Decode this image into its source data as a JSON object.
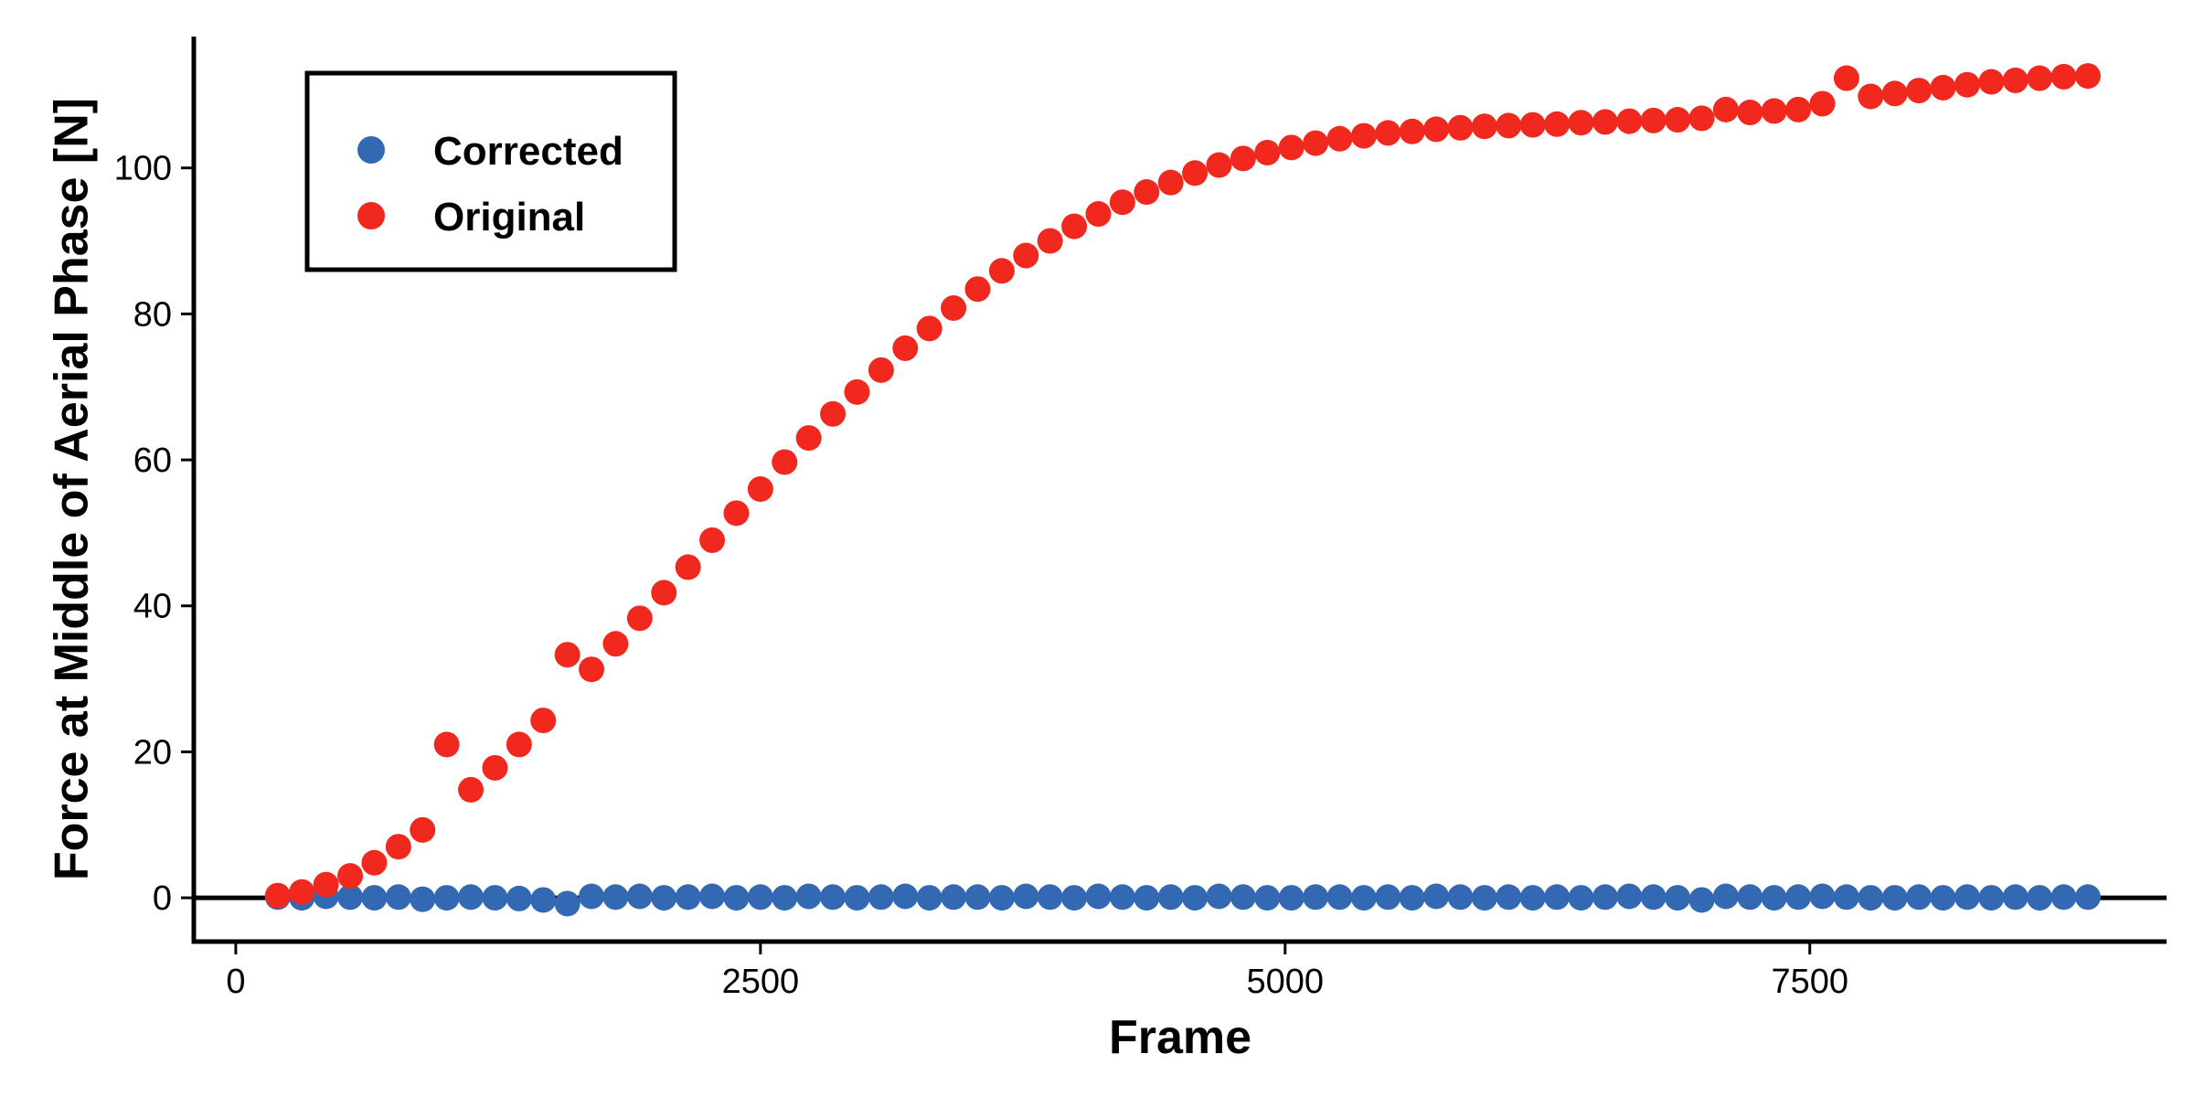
{
  "chart_data": {
    "type": "scatter",
    "title": "",
    "xlabel": "Frame",
    "ylabel": "Force at Middle of Aerial Phase [N]",
    "xlim": [
      -200,
      9200
    ],
    "ylim": [
      -6,
      118
    ],
    "xticks": [
      0,
      2500,
      5000,
      7500
    ],
    "yticks": [
      0,
      20,
      40,
      60,
      80,
      100
    ],
    "grid": false,
    "reference_line_y": 0,
    "legend_position": "top-left",
    "series": [
      {
        "name": "Corrected",
        "color": "#3369b3",
        "x": [
          200,
          315,
          430,
          545,
          660,
          775,
          890,
          1005,
          1120,
          1235,
          1350,
          1465,
          1580,
          1695,
          1810,
          1925,
          2040,
          2155,
          2270,
          2385,
          2500,
          2615,
          2730,
          2845,
          2960,
          3075,
          3190,
          3305,
          3420,
          3535,
          3650,
          3765,
          3880,
          3995,
          4110,
          4225,
          4340,
          4455,
          4570,
          4685,
          4800,
          4915,
          5030,
          5145,
          5260,
          5375,
          5490,
          5605,
          5720,
          5835,
          5950,
          6065,
          6180,
          6295,
          6410,
          6525,
          6640,
          6755,
          6870,
          6985,
          7100,
          7215,
          7330,
          7445,
          7560,
          7675,
          7790,
          7905,
          8020,
          8135,
          8250,
          8365,
          8480,
          8595,
          8710,
          8825
        ],
        "y": [
          0.1,
          0,
          0.2,
          0.1,
          0,
          0.1,
          -0.2,
          0,
          0.1,
          0,
          -0.1,
          -0.3,
          -0.8,
          0.2,
          0.1,
          0.2,
          0,
          0.1,
          0.2,
          0,
          0.1,
          0,
          0.2,
          0.1,
          0,
          0.1,
          0.2,
          0,
          0.1,
          0.1,
          0,
          0.2,
          0.1,
          0,
          0.2,
          0.1,
          0,
          0.1,
          0,
          0.2,
          0.1,
          0,
          0,
          0.1,
          0.1,
          0,
          0.1,
          0,
          0.2,
          0.1,
          0,
          0.1,
          0,
          0.1,
          0,
          0.1,
          0.2,
          0.1,
          0,
          -0.3,
          0.2,
          0.1,
          0,
          0.1,
          0.2,
          0.1,
          0,
          0,
          0.1,
          0,
          0.1,
          0,
          0.1,
          0,
          0.1,
          0.1
        ]
      },
      {
        "name": "Original",
        "color": "#f0281e",
        "x": [
          200,
          315,
          430,
          545,
          660,
          775,
          890,
          1005,
          1120,
          1235,
          1350,
          1465,
          1580,
          1695,
          1810,
          1925,
          2040,
          2155,
          2270,
          2385,
          2500,
          2615,
          2730,
          2845,
          2960,
          3075,
          3190,
          3305,
          3420,
          3535,
          3650,
          3765,
          3880,
          3995,
          4110,
          4225,
          4340,
          4455,
          4570,
          4685,
          4800,
          4915,
          5030,
          5145,
          5260,
          5375,
          5490,
          5605,
          5720,
          5835,
          5950,
          6065,
          6180,
          6295,
          6410,
          6525,
          6640,
          6755,
          6870,
          6985,
          7100,
          7215,
          7330,
          7445,
          7560,
          7675,
          7790,
          7905,
          8020,
          8135,
          8250,
          8365,
          8480,
          8595,
          8710,
          8825
        ],
        "y": [
          0.3,
          0.8,
          1.8,
          3.0,
          4.8,
          7.0,
          9.3,
          21.0,
          14.8,
          17.8,
          21.0,
          24.3,
          33.3,
          31.3,
          34.8,
          38.3,
          41.8,
          45.3,
          49.0,
          52.7,
          56.0,
          59.7,
          63.0,
          66.3,
          69.3,
          72.3,
          75.3,
          78.0,
          80.8,
          83.4,
          85.9,
          88.0,
          90.0,
          92.0,
          93.7,
          95.3,
          96.7,
          98.0,
          99.3,
          100.4,
          101.3,
          102.1,
          102.8,
          103.4,
          104.0,
          104.4,
          104.8,
          105.0,
          105.3,
          105.5,
          105.7,
          105.8,
          105.9,
          106.0,
          106.2,
          106.3,
          106.4,
          106.5,
          106.6,
          106.8,
          108.0,
          107.6,
          107.8,
          108.0,
          108.8,
          112.3,
          109.8,
          110.2,
          110.6,
          111.0,
          111.4,
          111.8,
          112.0,
          112.3,
          112.5,
          112.6
        ]
      }
    ]
  }
}
